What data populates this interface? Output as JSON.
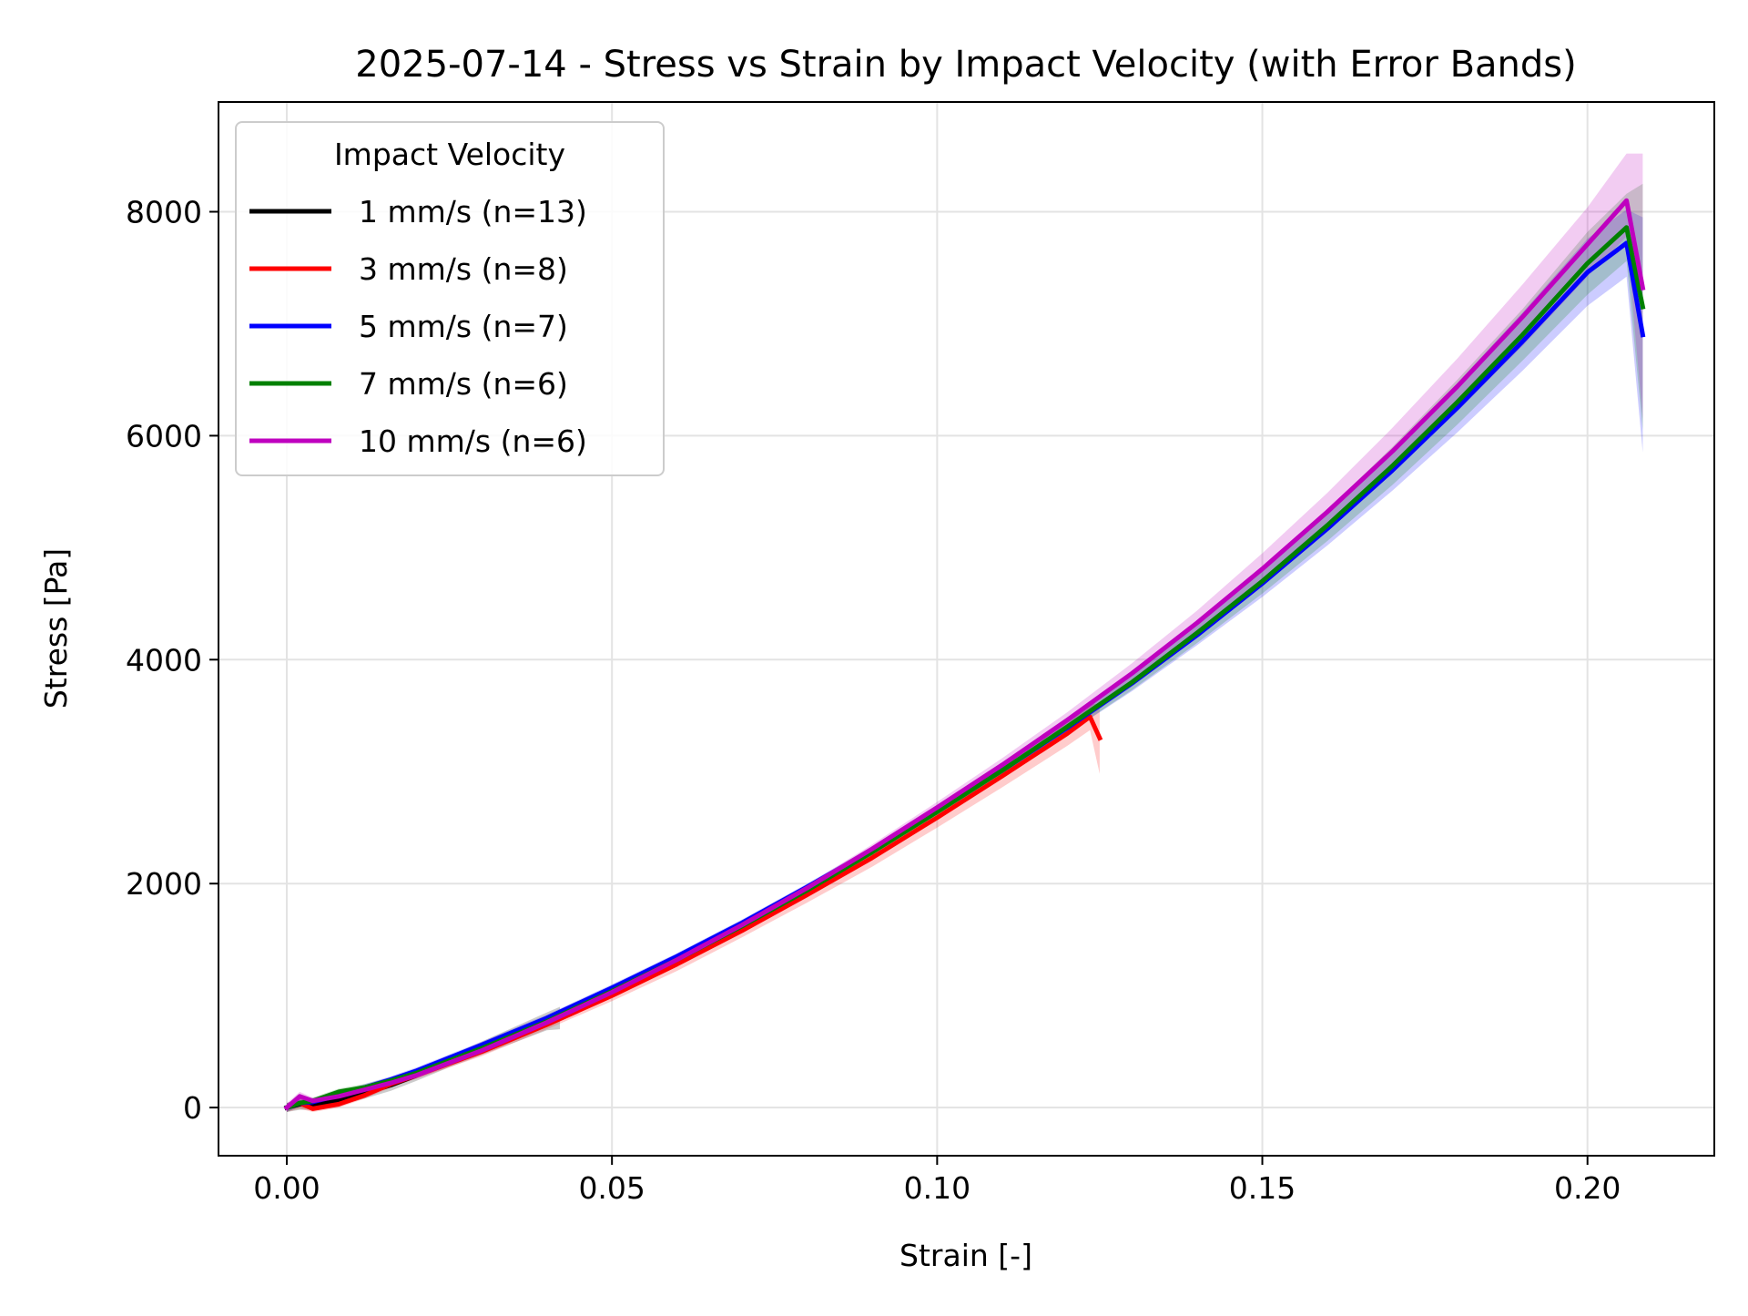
{
  "chart_data": {
    "type": "line",
    "title": "2025-07-14 - Stress vs Strain by Impact Velocity (with Error Bands)",
    "xlabel": "Strain [-]",
    "ylabel": "Stress [Pa]",
    "xlim": [
      -0.0105,
      0.2195
    ],
    "ylim": [
      -430,
      8980
    ],
    "xticks": [
      0.0,
      0.05,
      0.1,
      0.15,
      0.2
    ],
    "xtick_labels": [
      "0.00",
      "0.05",
      "0.10",
      "0.15",
      "0.20"
    ],
    "yticks": [
      0,
      2000,
      4000,
      6000,
      8000
    ],
    "ytick_labels": [
      "0",
      "2000",
      "4000",
      "6000",
      "8000"
    ],
    "grid": true,
    "legend": {
      "title": "Impact Velocity",
      "placement": "top-left"
    },
    "series": [
      {
        "name": "1 mm/s (n=13)",
        "color": "#000000",
        "x": [
          0.0,
          0.002,
          0.004,
          0.008,
          0.012,
          0.016,
          0.02,
          0.025,
          0.03,
          0.035,
          0.04,
          0.042
        ],
        "y": [
          0,
          30,
          25,
          70,
          130,
          200,
          290,
          410,
          530,
          650,
          770,
          820
        ],
        "lower": [
          -40,
          -20,
          -20,
          20,
          80,
          150,
          240,
          360,
          470,
          580,
          690,
          700
        ],
        "upper": [
          40,
          80,
          70,
          120,
          180,
          250,
          340,
          460,
          590,
          720,
          850,
          900
        ]
      },
      {
        "name": "3 mm/s (n=8)",
        "color": "#ff0000",
        "x": [
          0.0,
          0.002,
          0.004,
          0.006,
          0.008,
          0.012,
          0.016,
          0.02,
          0.03,
          0.04,
          0.05,
          0.06,
          0.07,
          0.08,
          0.09,
          0.1,
          0.11,
          0.12,
          0.1235,
          0.125
        ],
        "y": [
          0,
          40,
          -10,
          10,
          30,
          110,
          210,
          290,
          500,
          740,
          1000,
          1280,
          1580,
          1900,
          2230,
          2590,
          2960,
          3340,
          3490,
          3300
        ],
        "lower": [
          -40,
          -10,
          -40,
          -20,
          0,
          80,
          180,
          260,
          460,
          700,
          950,
          1220,
          1520,
          1830,
          2150,
          2500,
          2860,
          3230,
          3370,
          2980
        ],
        "upper": [
          40,
          90,
          20,
          40,
          60,
          140,
          240,
          320,
          540,
          780,
          1050,
          1340,
          1640,
          1970,
          2310,
          2680,
          3060,
          3450,
          3610,
          3600
        ]
      },
      {
        "name": "5 mm/s (n=7)",
        "color": "#0000ff",
        "x": [
          0.0,
          0.002,
          0.004,
          0.008,
          0.012,
          0.016,
          0.02,
          0.03,
          0.04,
          0.05,
          0.06,
          0.07,
          0.08,
          0.09,
          0.1,
          0.11,
          0.12,
          0.13,
          0.14,
          0.15,
          0.16,
          0.17,
          0.18,
          0.19,
          0.2,
          0.206,
          0.2085
        ],
        "y": [
          0,
          40,
          50,
          110,
          180,
          250,
          330,
          560,
          800,
          1070,
          1350,
          1650,
          1970,
          2300,
          2650,
          3010,
          3390,
          3790,
          4220,
          4680,
          5170,
          5690,
          6250,
          6840,
          7460,
          7720,
          6900
        ],
        "lower": [
          -40,
          10,
          20,
          80,
          150,
          220,
          300,
          530,
          770,
          1040,
          1320,
          1620,
          1940,
          2270,
          2620,
          2970,
          3340,
          3720,
          4130,
          4560,
          5020,
          5510,
          6030,
          6580,
          7160,
          7420,
          5850
        ],
        "upper": [
          40,
          70,
          80,
          140,
          210,
          280,
          360,
          590,
          830,
          1100,
          1380,
          1680,
          2000,
          2330,
          2680,
          3050,
          3440,
          3860,
          4310,
          4800,
          5320,
          5870,
          6470,
          7100,
          7760,
          8020,
          7950
        ]
      },
      {
        "name": "7 mm/s (n=6)",
        "color": "#008000",
        "x": [
          0.0,
          0.002,
          0.004,
          0.008,
          0.012,
          0.016,
          0.02,
          0.03,
          0.04,
          0.05,
          0.06,
          0.07,
          0.08,
          0.09,
          0.1,
          0.11,
          0.12,
          0.13,
          0.14,
          0.15,
          0.16,
          0.17,
          0.18,
          0.19,
          0.2,
          0.206,
          0.2085
        ],
        "y": [
          0,
          40,
          60,
          140,
          180,
          240,
          310,
          530,
          770,
          1040,
          1320,
          1620,
          1940,
          2280,
          2640,
          3010,
          3400,
          3800,
          4240,
          4700,
          5200,
          5730,
          6300,
          6900,
          7540,
          7860,
          7150
        ],
        "lower": [
          -40,
          10,
          30,
          110,
          150,
          210,
          280,
          500,
          740,
          1010,
          1290,
          1590,
          1910,
          2250,
          2600,
          2960,
          3340,
          3730,
          4150,
          4590,
          5060,
          5560,
          6100,
          6670,
          7260,
          7560,
          6050
        ],
        "upper": [
          40,
          70,
          90,
          170,
          210,
          270,
          340,
          560,
          800,
          1070,
          1350,
          1650,
          1970,
          2310,
          2680,
          3060,
          3460,
          3880,
          4330,
          4810,
          5340,
          5900,
          6500,
          7130,
          7820,
          8160,
          8250
        ]
      },
      {
        "name": "10 mm/s (n=6)",
        "color": "#bf00bf",
        "x": [
          0.0,
          0.002,
          0.004,
          0.008,
          0.012,
          0.016,
          0.02,
          0.03,
          0.04,
          0.05,
          0.06,
          0.07,
          0.08,
          0.09,
          0.1,
          0.11,
          0.12,
          0.13,
          0.14,
          0.15,
          0.16,
          0.17,
          0.18,
          0.19,
          0.2,
          0.206,
          0.2085
        ],
        "y": [
          0,
          100,
          60,
          100,
          160,
          220,
          290,
          510,
          760,
          1030,
          1320,
          1630,
          1960,
          2310,
          2680,
          3060,
          3460,
          3880,
          4330,
          4810,
          5320,
          5860,
          6440,
          7060,
          7710,
          8100,
          7320
        ],
        "lower": [
          -40,
          60,
          30,
          70,
          130,
          190,
          260,
          480,
          730,
          1000,
          1290,
          1600,
          1930,
          2280,
          2640,
          3010,
          3400,
          3800,
          4230,
          4680,
          5160,
          5670,
          6220,
          6800,
          7420,
          7780,
          6150
        ],
        "upper": [
          40,
          140,
          90,
          130,
          190,
          250,
          320,
          540,
          790,
          1060,
          1350,
          1660,
          1990,
          2350,
          2730,
          3120,
          3530,
          3970,
          4440,
          4950,
          5490,
          6070,
          6690,
          7350,
          8040,
          8520,
          8520
        ]
      }
    ]
  }
}
